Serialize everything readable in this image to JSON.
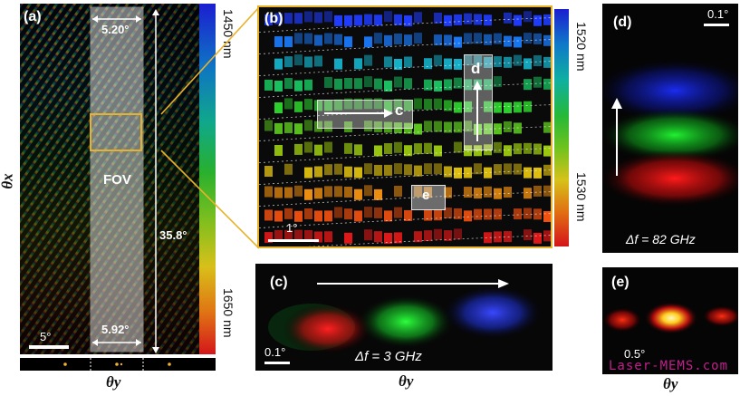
{
  "figure": {
    "panel_a": {
      "label": "(a)",
      "fov_label": "FOV",
      "fov_width_top": "5.20°",
      "fov_width_bottom": "5.92°",
      "fov_height": "35.8°",
      "scale_label": "5°",
      "axis_x": "θy",
      "axis_y": "θx",
      "colorbar_top": "1450 nm",
      "colorbar_bottom": "1650 nm"
    },
    "panel_b": {
      "label": "(b)",
      "scale_label": "1°",
      "box_c": "c",
      "box_d": "d",
      "box_e": "e",
      "colorbar_top": "1520 nm",
      "colorbar_bottom": "1530 nm"
    },
    "panel_c": {
      "label": "(c)",
      "scale_label": "0.1°",
      "delta_f": "Δf = 3 GHz",
      "axis_x": "θy"
    },
    "panel_d": {
      "label": "(d)",
      "scale_label": "0.1°",
      "delta_f": "Δf = 82 GHz"
    },
    "panel_e": {
      "label": "(e)",
      "scale_label": "0.5°",
      "axis_x": "θy",
      "watermark": "Laser-MEMS.com"
    },
    "colors": {
      "highlight": "#e8b22a",
      "watermark": "#c0208c"
    }
  }
}
